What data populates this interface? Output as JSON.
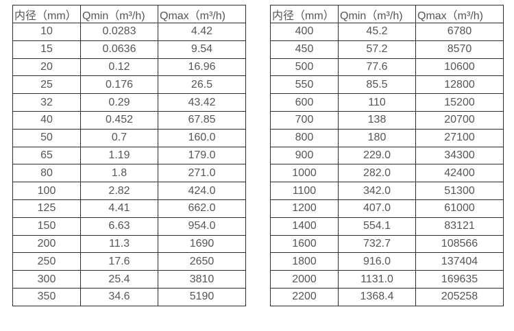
{
  "theme": {
    "background": "#ffffff",
    "border_color": "#2b2b2b",
    "text_color": "#555555"
  },
  "columns": {
    "diameter": "内径（mm）",
    "qmin": "Qmin（m³/h)",
    "qmax": "Qmax（m³/h)"
  },
  "tables": [
    {
      "name": "left",
      "rows": [
        [
          "10",
          "0.0283",
          "4.42"
        ],
        [
          "15",
          "0.0636",
          "9.54"
        ],
        [
          "20",
          "0.12",
          "16.96"
        ],
        [
          "25",
          "0.176",
          "26.5"
        ],
        [
          "32",
          "0.29",
          "43.42"
        ],
        [
          "40",
          "0.452",
          "67.85"
        ],
        [
          "50",
          "0.7",
          "160.0"
        ],
        [
          "65",
          "1.19",
          "179.0"
        ],
        [
          "80",
          "1.8",
          "271.0"
        ],
        [
          "100",
          "2.82",
          "424.0"
        ],
        [
          "125",
          "4.41",
          "662.0"
        ],
        [
          "150",
          "6.63",
          "954.0"
        ],
        [
          "200",
          "11.3",
          "1690"
        ],
        [
          "250",
          "17.6",
          "2650"
        ],
        [
          "300",
          "25.4",
          "3810"
        ],
        [
          "350",
          "34.6",
          "5190"
        ]
      ]
    },
    {
      "name": "right",
      "rows": [
        [
          "400",
          "45.2",
          "6780"
        ],
        [
          "450",
          "57.2",
          "8570"
        ],
        [
          "500",
          "77.6",
          "10600"
        ],
        [
          "550",
          "85.5",
          "12800"
        ],
        [
          "600",
          "110",
          "15200"
        ],
        [
          "700",
          "138",
          "20700"
        ],
        [
          "800",
          "180",
          "27100"
        ],
        [
          "900",
          "229.0",
          "34300"
        ],
        [
          "1000",
          "282.0",
          "42400"
        ],
        [
          "1100",
          "342.0",
          "51300"
        ],
        [
          "1200",
          "407.0",
          "61000"
        ],
        [
          "1400",
          "554.1",
          "83121"
        ],
        [
          "1600",
          "732.7",
          "108566"
        ],
        [
          "1800",
          "916.0",
          "137404"
        ],
        [
          "2000",
          "1131.0",
          "169635"
        ],
        [
          "2200",
          "1368.4",
          "205258"
        ]
      ]
    }
  ]
}
